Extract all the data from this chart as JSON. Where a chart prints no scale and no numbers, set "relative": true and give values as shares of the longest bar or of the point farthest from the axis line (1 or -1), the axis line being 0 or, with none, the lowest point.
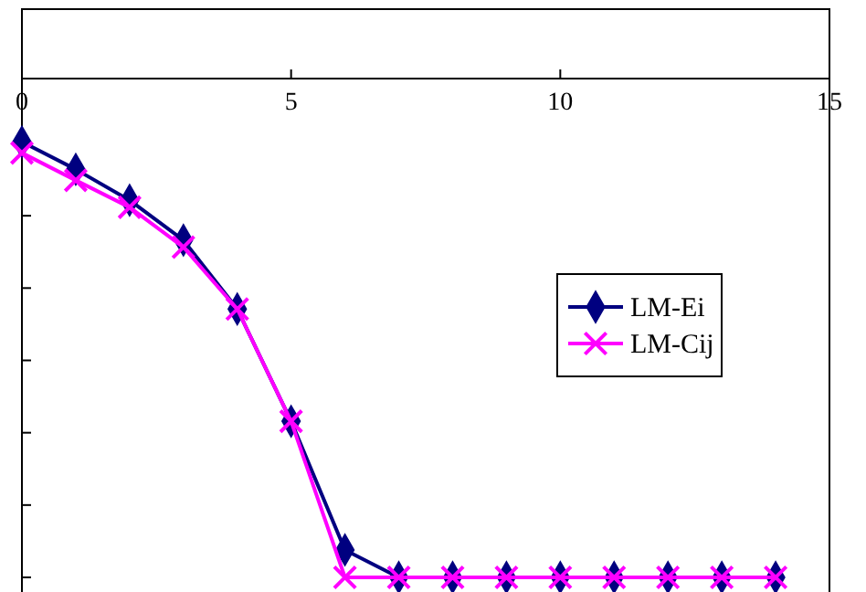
{
  "chart_data": {
    "type": "line",
    "relative": true,
    "x": [
      0,
      1,
      2,
      3,
      4,
      5,
      6,
      7,
      8,
      9,
      10,
      11,
      12,
      13,
      14
    ],
    "xlim": [
      0,
      15
    ],
    "xticks": [
      0,
      5,
      10,
      15
    ],
    "legend": "right",
    "series": [
      {
        "name": "LM-Ei",
        "color": "#000080",
        "marker": "diamond",
        "values": [
          -0.127,
          -0.182,
          -0.244,
          -0.324,
          -0.462,
          -0.687,
          -0.945,
          -1,
          -1,
          -1,
          -1,
          -1,
          -1,
          -1,
          -1
        ]
      },
      {
        "name": "LM-Cij",
        "color": "#ff00ff",
        "marker": "cross",
        "values": [
          -0.149,
          -0.204,
          -0.258,
          -0.338,
          -0.462,
          -0.687,
          -1,
          -1,
          -1,
          -1,
          -1,
          -1,
          -1,
          -1,
          -1
        ]
      }
    ]
  }
}
